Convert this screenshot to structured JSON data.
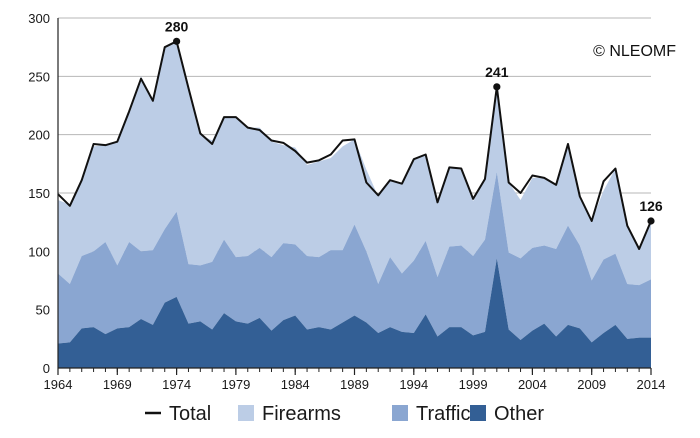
{
  "chart_data": {
    "type": "area",
    "copyright": "© NLEOMF",
    "xlim": [
      1964,
      2014
    ],
    "ylim": [
      0,
      300
    ],
    "y_ticks": [
      "0",
      "50",
      "100",
      "150",
      "200",
      "250",
      "300"
    ],
    "x_ticks": [
      "1964",
      "1969",
      "1974",
      "1979",
      "1984",
      "1989",
      "1994",
      "1999",
      "2004",
      "2009",
      "2014"
    ],
    "grid": true,
    "legend_position": "bottom",
    "legend": [
      {
        "label": "Total",
        "style": "line",
        "color": "#111111"
      },
      {
        "label": "Firearms",
        "style": "swatch",
        "color": "#bccde6"
      },
      {
        "label": "Traffic",
        "style": "swatch",
        "color": "#8aa6d1"
      },
      {
        "label": "Other",
        "style": "swatch",
        "color": "#335f95"
      }
    ],
    "x": [
      1964,
      1965,
      1966,
      1967,
      1968,
      1969,
      1970,
      1971,
      1972,
      1973,
      1974,
      1975,
      1976,
      1977,
      1978,
      1979,
      1980,
      1981,
      1982,
      1983,
      1984,
      1985,
      1986,
      1987,
      1988,
      1989,
      1990,
      1991,
      1992,
      1993,
      1994,
      1995,
      1996,
      1997,
      1998,
      1999,
      2000,
      2001,
      2002,
      2003,
      2004,
      2005,
      2006,
      2007,
      2008,
      2009,
      2010,
      2011,
      2012,
      2013,
      2014
    ],
    "series": [
      {
        "name": "Total",
        "color": "#111111",
        "values": [
          149,
          139,
          161,
          192,
          191,
          194,
          220,
          248,
          229,
          275,
          280,
          240,
          201,
          192,
          215,
          215,
          206,
          204,
          195,
          193,
          186,
          176,
          178,
          183,
          195,
          196,
          159,
          148,
          161,
          158,
          179,
          183,
          142,
          172,
          171,
          145,
          162,
          241,
          159,
          150,
          165,
          163,
          157,
          192,
          147,
          126,
          160,
          171,
          122,
          102,
          126
        ]
      },
      {
        "name": "Firearms",
        "color": "#bccde6",
        "values": [
          63,
          68,
          64,
          90,
          83,
          106,
          112,
          150,
          129,
          155,
          145,
          149,
          112,
          104,
          105,
          120,
          110,
          103,
          99,
          84,
          83,
          78,
          82,
          79,
          89,
          73,
          70,
          75,
          66,
          77,
          88,
          73,
          63,
          68,
          65,
          47,
          52,
          73,
          60,
          50,
          60,
          58,
          54,
          71,
          41,
          51,
          59,
          73,
          51,
          30,
          50
        ]
      },
      {
        "name": "Traffic",
        "color": "#8aa6d1",
        "values": [
          60,
          50,
          62,
          65,
          79,
          54,
          73,
          58,
          64,
          63,
          73,
          51,
          48,
          58,
          63,
          55,
          58,
          60,
          63,
          66,
          61,
          63,
          60,
          68,
          62,
          78,
          61,
          42,
          60,
          50,
          62,
          63,
          51,
          69,
          70,
          68,
          79,
          74,
          66,
          70,
          71,
          67,
          75,
          85,
          71,
          53,
          63,
          61,
          47,
          45,
          50
        ]
      },
      {
        "name": "Other",
        "color": "#335f95",
        "values": [
          21,
          22,
          34,
          35,
          29,
          34,
          35,
          42,
          37,
          56,
          61,
          38,
          40,
          33,
          47,
          40,
          38,
          43,
          32,
          41,
          45,
          33,
          35,
          33,
          39,
          45,
          39,
          30,
          35,
          31,
          30,
          46,
          27,
          35,
          35,
          28,
          31,
          94,
          33,
          24,
          32,
          38,
          27,
          37,
          34,
          22,
          30,
          37,
          25,
          26,
          26
        ]
      }
    ],
    "annotations": [
      {
        "x": 1974,
        "y": 280,
        "label": "280"
      },
      {
        "x": 2001,
        "y": 241,
        "label": "241"
      },
      {
        "x": 2014,
        "y": 126,
        "label": "126"
      }
    ]
  }
}
